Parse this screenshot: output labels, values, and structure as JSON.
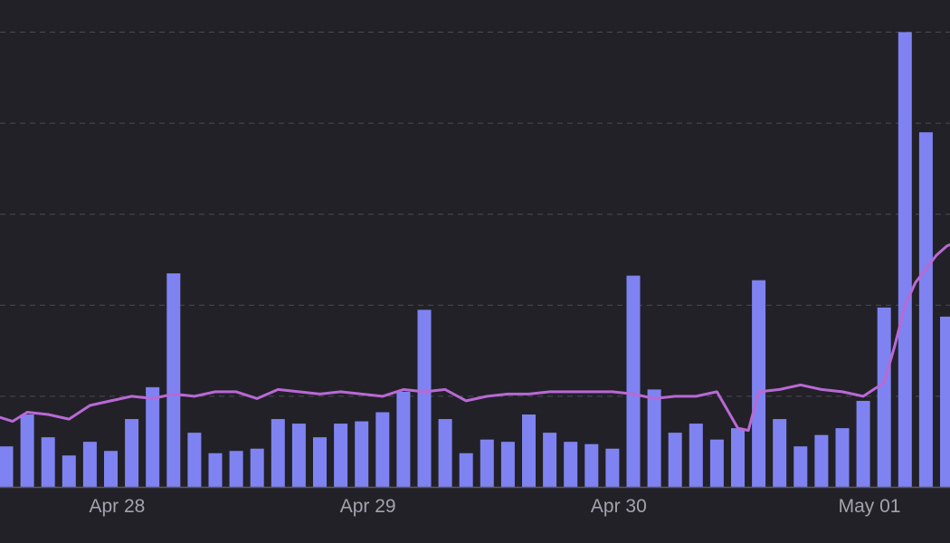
{
  "chart_data": {
    "type": "bar",
    "title": "",
    "xlabel": "",
    "ylabel": "",
    "ylim": [
      0,
      100
    ],
    "grid": true,
    "x_tick_labels": [
      "Apr 28",
      "Apr 29",
      "Apr 30",
      "May 01"
    ],
    "x_tick_positions": [
      5.3,
      17.3,
      29.3,
      41.3
    ],
    "colors": {
      "bars": "#7f83f1",
      "line": "#b869d4",
      "grid": "#4a4a52",
      "axis": "#5a5a62",
      "background": "#222128",
      "text": "#a3a3ad"
    },
    "series": [
      {
        "name": "bars",
        "type": "bar",
        "x": [
          0,
          1,
          2,
          3,
          4,
          5,
          6,
          7,
          8,
          9,
          10,
          11,
          12,
          13,
          14,
          15,
          16,
          17,
          18,
          19,
          20,
          21,
          22,
          23,
          24,
          25,
          26,
          27,
          28,
          29,
          30,
          31,
          32,
          33,
          34,
          35,
          36,
          37,
          38,
          39,
          40,
          41,
          42,
          43,
          44,
          45
        ],
        "values": [
          9,
          16,
          11,
          7,
          10,
          8,
          15,
          22,
          47,
          12,
          7.5,
          8,
          8.5,
          15,
          14,
          11,
          14,
          14.5,
          16.5,
          21,
          39,
          15,
          7.5,
          10.5,
          10,
          16,
          12,
          10,
          9.5,
          8.5,
          46.5,
          21.5,
          12,
          14,
          10.5,
          13,
          45.5,
          15,
          9,
          11.5,
          13,
          19,
          39.5,
          100,
          78,
          37.5
        ]
      },
      {
        "name": "line",
        "type": "line",
        "x": [
          -0.4,
          0.3,
          1.0,
          2.0,
          3.0,
          4.0,
          5.0,
          6.0,
          7.0,
          8.0,
          9.0,
          10.0,
          11.0,
          12.0,
          13.0,
          14.0,
          15.0,
          16.0,
          17.0,
          18.0,
          19.0,
          20.0,
          21.0,
          22.0,
          23.0,
          24.0,
          25.0,
          26.0,
          27.0,
          28.0,
          29.0,
          30.0,
          31.0,
          32.0,
          33.0,
          34.0,
          35.0,
          35.5,
          36.0,
          37.0,
          38.0,
          39.0,
          40.0,
          41.0,
          42.0,
          42.5,
          43.0,
          43.5,
          44.0,
          44.5,
          45.0,
          45.5
        ],
        "values": [
          15.5,
          14.5,
          16.5,
          16,
          15,
          18,
          19,
          20,
          19.5,
          20.5,
          20,
          21,
          21,
          19.5,
          21.5,
          21,
          20.5,
          21,
          20.5,
          20,
          21.5,
          21,
          21.5,
          19,
          20,
          20.5,
          20.5,
          21,
          21,
          21,
          21,
          20.5,
          19.5,
          20,
          20,
          21,
          13,
          12.5,
          21,
          21.5,
          22.5,
          21.5,
          21,
          20,
          23,
          31,
          40,
          45,
          48,
          51,
          53,
          54
        ]
      }
    ]
  }
}
